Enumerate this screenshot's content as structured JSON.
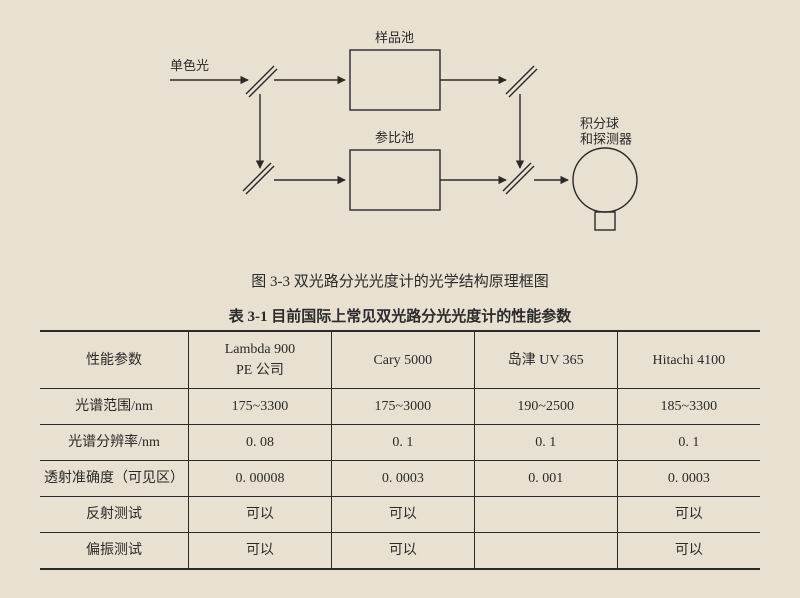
{
  "figure": {
    "caption": "图 3-3  双光路分光光度计的光学结构原理框图",
    "labels": {
      "input_beam": "单色光",
      "sample_cell": "样品池",
      "reference_cell": "参比池",
      "detector": "积分球\n和探测器"
    },
    "style": {
      "stroke": "#2a2a2a",
      "stroke_width": 1.4,
      "text_color": "#2a2a2a",
      "font_size": 13,
      "background": "#e8e0d0"
    }
  },
  "table": {
    "title": "表 3-1  目前国际上常见双光路分光光度计的性能参数",
    "param_header": "性能参数",
    "instruments": [
      "Lambda 900\nPE 公司",
      "Cary 5000",
      "岛津 UV 365",
      "Hitachi 4100"
    ],
    "rows": [
      {
        "param": "光谱范围/nm",
        "values": [
          "175~3300",
          "175~3000",
          "190~2500",
          "185~3300"
        ]
      },
      {
        "param": "光谱分辨率/nm",
        "values": [
          "0. 08",
          "0. 1",
          "0. 1",
          "0. 1"
        ]
      },
      {
        "param": "透射准确度（可见区）",
        "values": [
          "0. 00008",
          "0. 0003",
          "0. 001",
          "0. 0003"
        ]
      },
      {
        "param": "反射测试",
        "values": [
          "可以",
          "可以",
          "",
          "可以"
        ]
      },
      {
        "param": "偏振测试",
        "values": [
          "可以",
          "可以",
          "",
          "可以"
        ]
      }
    ]
  }
}
